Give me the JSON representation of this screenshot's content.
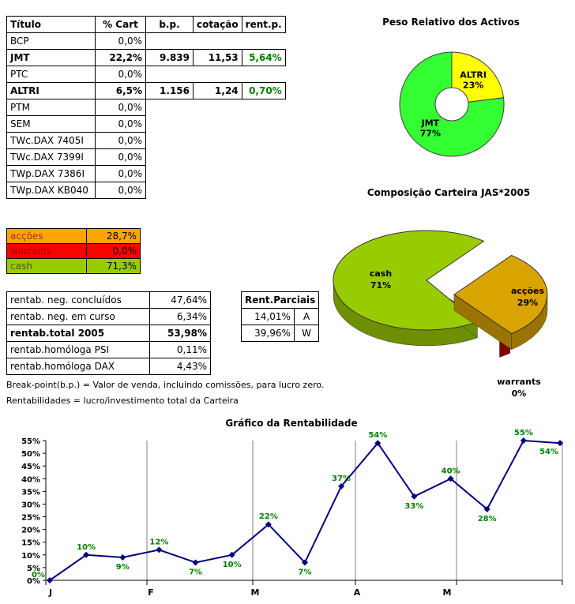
{
  "portfolio_table": {
    "headers": {
      "titulo": "Título",
      "cart": "% Cart",
      "bp": "b.p.",
      "cotacao": "cotação",
      "rent": "rent.p."
    },
    "rows": [
      {
        "titulo": "BCP",
        "cart": "0,0%",
        "bp": "",
        "cotacao": "",
        "rent": "",
        "bold": false
      },
      {
        "titulo": "JMT",
        "cart": "22,2%",
        "bp": "9.839",
        "cotacao": "11,53",
        "rent": "5,64%",
        "bold": true
      },
      {
        "titulo": "PTC",
        "cart": "0,0%",
        "bp": "",
        "cotacao": "",
        "rent": "",
        "bold": false
      },
      {
        "titulo": "ALTRI",
        "cart": "6,5%",
        "bp": "1.156",
        "cotacao": "1,24",
        "rent": "0,70%",
        "bold": true
      },
      {
        "titulo": "PTM",
        "cart": "0,0%",
        "bp": "",
        "cotacao": "",
        "rent": "",
        "bold": false
      },
      {
        "titulo": "SEM",
        "cart": "0,0%",
        "bp": "",
        "cotacao": "",
        "rent": "",
        "bold": false
      },
      {
        "titulo": "TWc.DAX 7405I",
        "cart": "0,0%",
        "bp": "",
        "cotacao": "",
        "rent": "",
        "bold": false
      },
      {
        "titulo": "TWc.DAX 7399I",
        "cart": "0,0%",
        "bp": "",
        "cotacao": "",
        "rent": "",
        "bold": false
      },
      {
        "titulo": "TWp.DAX 7386I",
        "cart": "0,0%",
        "bp": "",
        "cotacao": "",
        "rent": "",
        "bold": false
      },
      {
        "titulo": "TWp.DAX KB040",
        "cart": "0,0%",
        "bp": "",
        "cotacao": "",
        "rent": "",
        "bold": false
      }
    ]
  },
  "allocation_table": {
    "rows": [
      {
        "label": "acções",
        "value": "28,7%",
        "bg": "#FFA500",
        "fg": "#993300"
      },
      {
        "label": "warrants",
        "value": "0,0%",
        "bg": "#FF0000",
        "fg": "#990000"
      },
      {
        "label": "cash",
        "value": "71,3%",
        "bg": "#99CC00",
        "fg": "#4C5800"
      }
    ]
  },
  "results_table": {
    "rows": [
      {
        "label": "rentab. neg. concluídos",
        "value": "47,64%",
        "bold": false
      },
      {
        "label": "rentab. neg. em curso",
        "value": "6,34%",
        "bold": false
      },
      {
        "label": "rentab.total 2005",
        "value": "53,98%",
        "bold": true
      },
      {
        "label": "rentab.homóloga PSI",
        "value": "0,11%",
        "bold": false
      },
      {
        "label": "rentab.homóloga DAX",
        "value": "4,43%",
        "bold": false
      }
    ]
  },
  "partials_table": {
    "title": "Rent.Parciais",
    "rows": [
      {
        "value": "14,01%",
        "code": "A"
      },
      {
        "value": "39,96%",
        "code": "W"
      }
    ]
  },
  "notes": [
    "Break-point(b.p.) = Valor de venda, incluindo comissões, para lucro zero.",
    "Rentabilidades = lucro/investimento total da Carteira"
  ],
  "chart_data": [
    {
      "type": "pie",
      "title": "Peso Relativo dos Activos",
      "labels": [
        "ALTRI",
        "JMT"
      ],
      "values": [
        23,
        77
      ],
      "colors": [
        "#FFFF00",
        "#33FF33"
      ],
      "donut": true,
      "start_angle_deg": -90
    },
    {
      "type": "pie",
      "title": "Composição Carteira JAS*2005",
      "style": "3d-exploded",
      "labels": [
        "cash",
        "acções",
        "warrants"
      ],
      "values": [
        71,
        29,
        0
      ],
      "colors": [
        "#99CC00",
        "#D9A300",
        "#FF0000"
      ]
    },
    {
      "type": "line",
      "title": "Gráfico da Rentabilidade",
      "x_months": [
        "J",
        "F",
        "M",
        "A",
        "M"
      ],
      "values": [
        0,
        10,
        9,
        12,
        7,
        10,
        22,
        7,
        37,
        54,
        33,
        40,
        28,
        55,
        54
      ],
      "point_labels": [
        "0%",
        "10%",
        "9%",
        "12%",
        "7%",
        "10%",
        "22%",
        "7%",
        "37%",
        "54%",
        "33%",
        "40%",
        "28%",
        "55%",
        "54%"
      ],
      "label_side": [
        "left",
        "above",
        "below",
        "above",
        "below",
        "below",
        "above",
        "below",
        "above",
        "above",
        "below",
        "above",
        "below",
        "above",
        "right"
      ],
      "ylim": [
        0,
        55
      ],
      "ytick_step": 5,
      "grid": "vertical-month-lines",
      "legend": "none",
      "line_color": "#000080",
      "label_color": "#008000"
    }
  ]
}
